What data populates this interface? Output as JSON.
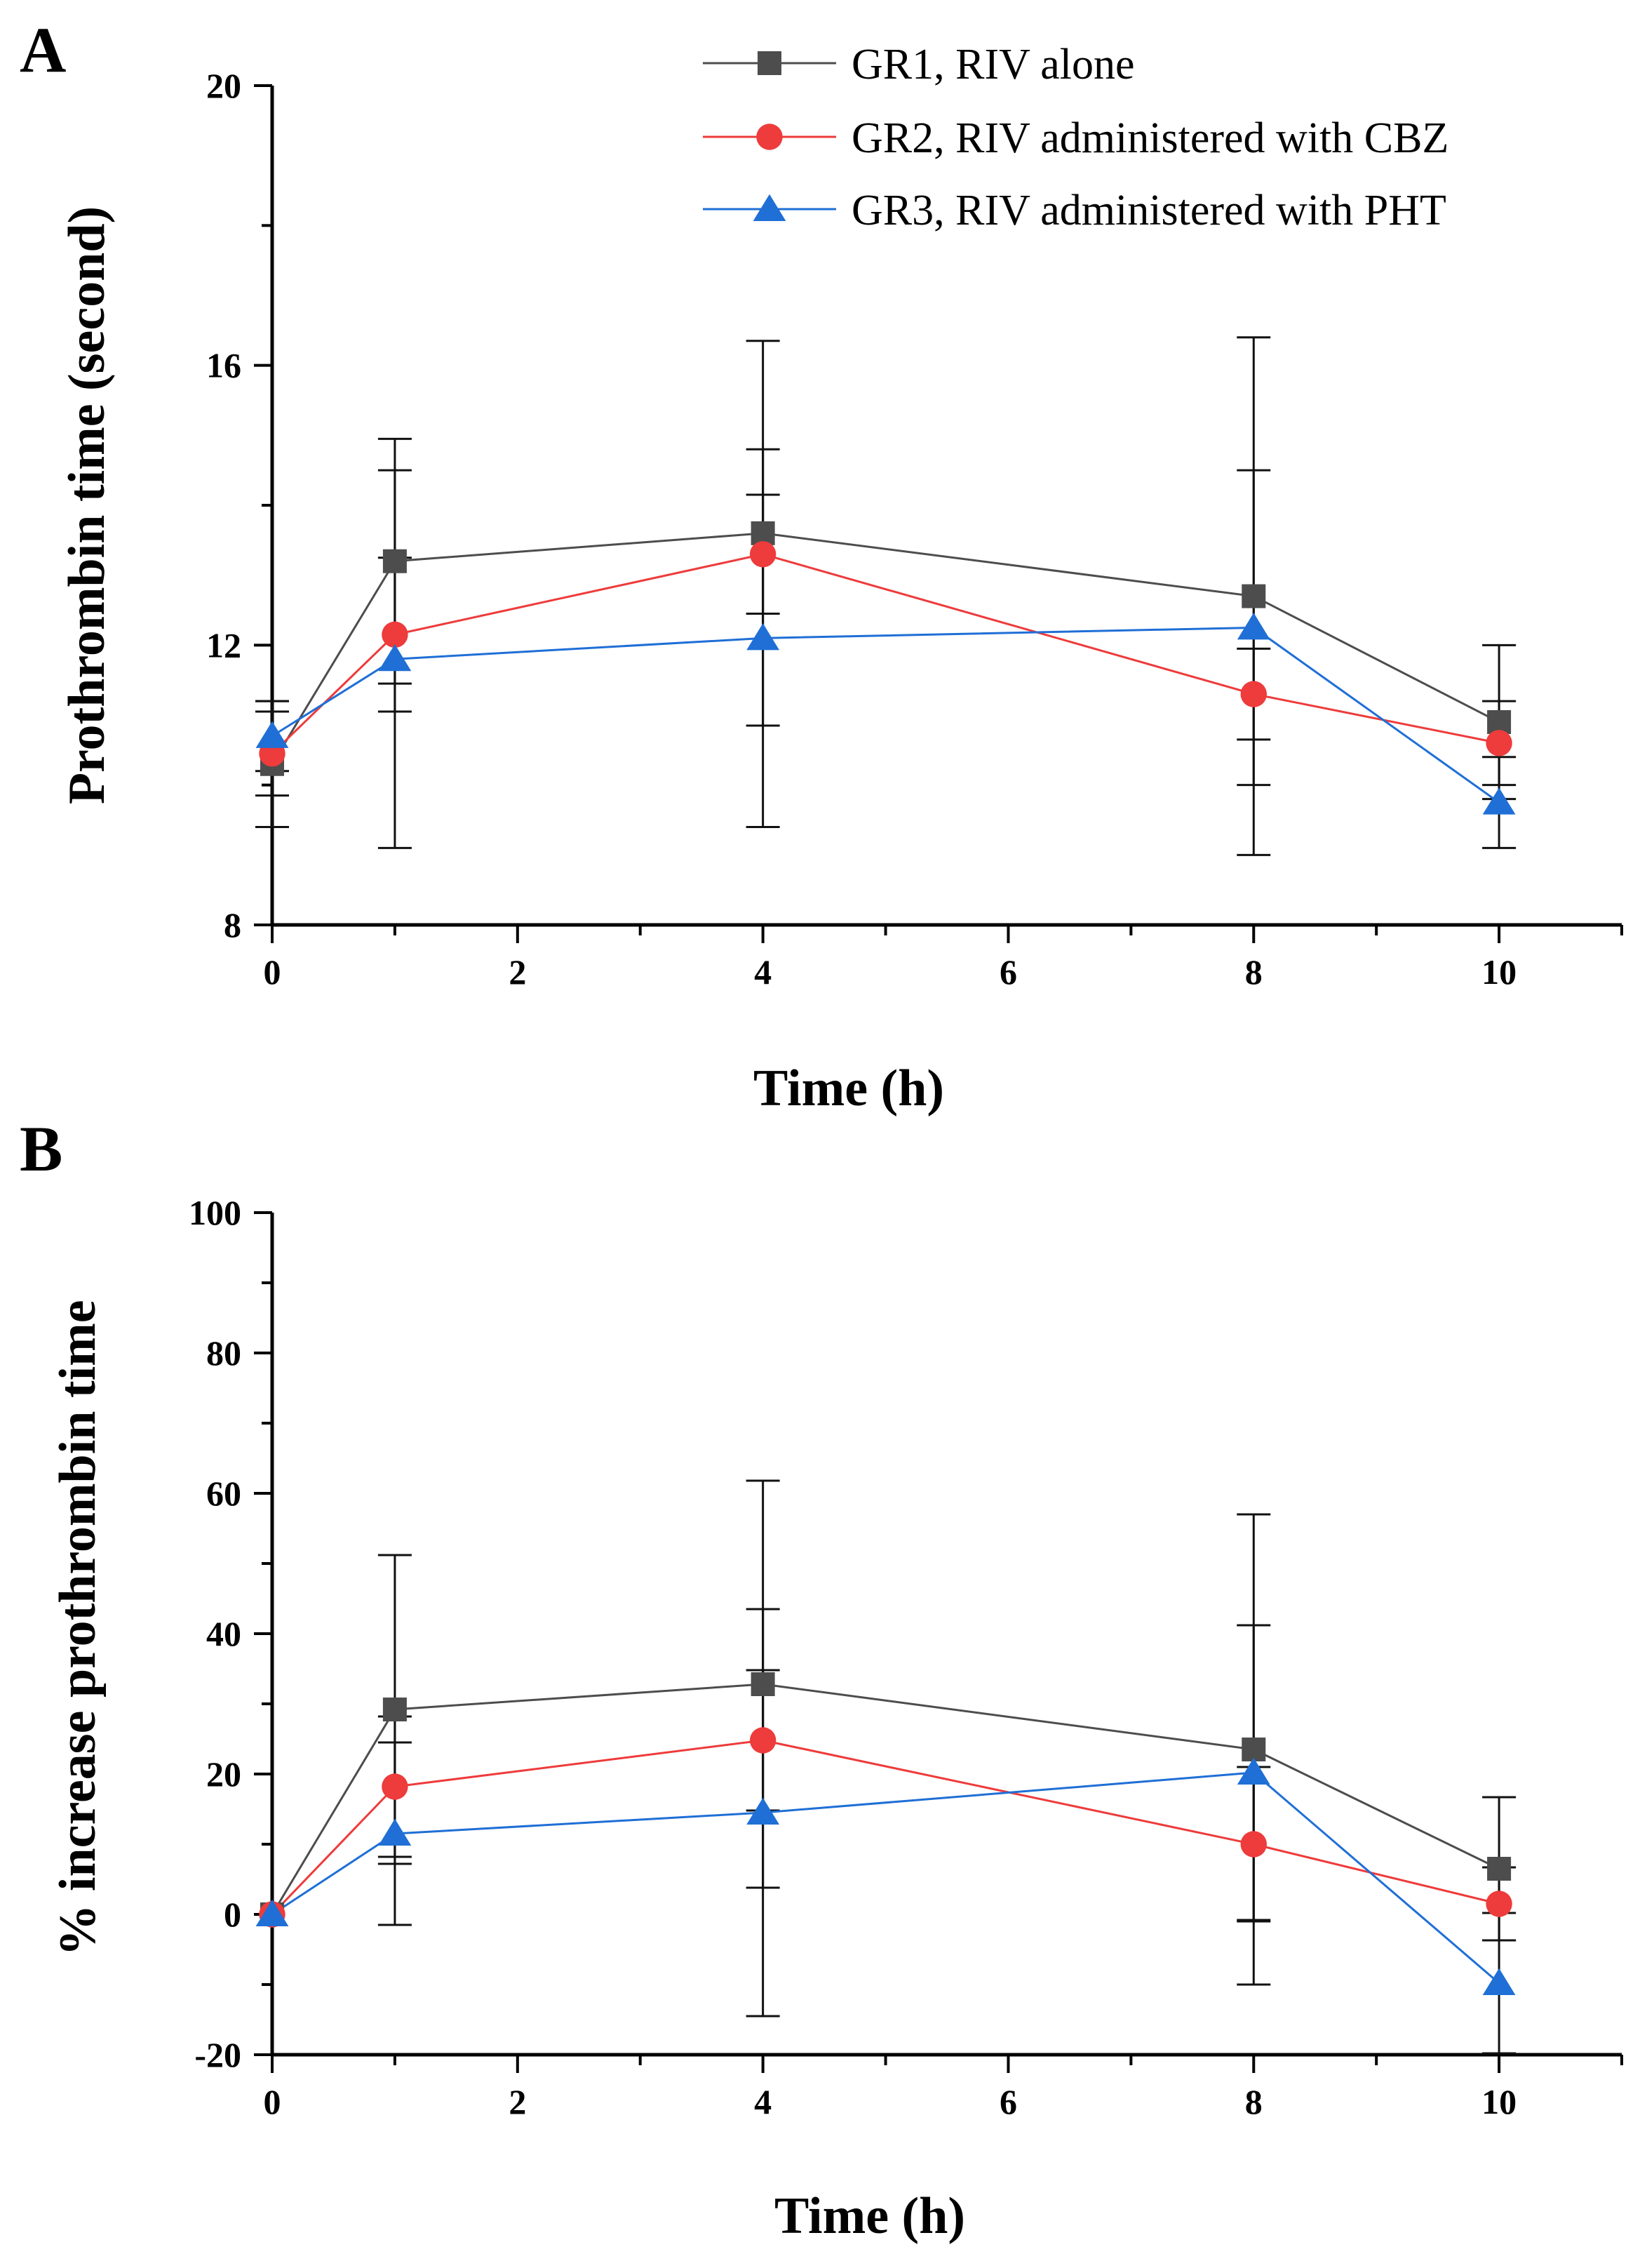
{
  "chart_data": [
    {
      "panel_label": "A",
      "type": "line",
      "xlabel": "Time (h)",
      "ylabel": "Prothrombin time (second)",
      "xlim": [
        0,
        11
      ],
      "ylim": [
        8,
        20
      ],
      "xticks": [
        0,
        2,
        4,
        6,
        8,
        10
      ],
      "yticks": [
        8,
        12,
        16,
        20
      ],
      "legend_position": "top-right",
      "series": [
        {
          "name": "GR1, RIV alone",
          "color": "#4d4d4d",
          "marker": "square",
          "x": [
            0,
            1,
            4,
            8,
            10
          ],
          "y": [
            10.3,
            13.2,
            13.6,
            12.7,
            10.9
          ],
          "error": [
            0.9,
            1.75,
            2.75,
            3.7,
            1.1
          ]
        },
        {
          "name": "GR2, RIV administered with CBZ",
          "color": "#ee3b3b",
          "marker": "circle",
          "x": [
            0,
            1,
            4,
            8,
            10
          ],
          "y": [
            10.45,
            12.15,
            13.3,
            11.3,
            10.6
          ],
          "error": [
            0.6,
            1.1,
            0.85,
            0.65,
            0.6
          ]
        },
        {
          "name": "GR3, RIV administered with PHT",
          "color": "#1f6fd6",
          "marker": "triangle",
          "x": [
            0,
            1,
            4,
            8,
            10
          ],
          "y": [
            10.7,
            11.8,
            12.1,
            12.25,
            9.75
          ],
          "error": [
            0.5,
            2.7,
            2.7,
            2.25,
            0.65
          ]
        }
      ]
    },
    {
      "panel_label": "B",
      "type": "line",
      "xlabel": "Time (h)",
      "ylabel": "% increase prothrombin time",
      "xlim": [
        0,
        11
      ],
      "ylim": [
        -20,
        100
      ],
      "xticks": [
        0,
        2,
        4,
        6,
        8,
        10
      ],
      "yticks": [
        -20,
        0,
        20,
        40,
        60,
        80,
        100
      ],
      "series": [
        {
          "name": "GR1, RIV alone",
          "color": "#4d4d4d",
          "marker": "square",
          "x": [
            0,
            1,
            4,
            8,
            10
          ],
          "y": [
            0,
            29.2,
            32.8,
            23.5,
            6.5
          ],
          "error": [
            0,
            22,
            29,
            33.5,
            10.2
          ]
        },
        {
          "name": "GR2, RIV administered with CBZ",
          "color": "#ee3b3b",
          "marker": "circle",
          "x": [
            0,
            1,
            4,
            8,
            10
          ],
          "y": [
            0,
            18.2,
            24.8,
            10,
            1.5
          ],
          "error": [
            0,
            10,
            10,
            11,
            5.2
          ]
        },
        {
          "name": "GR3, RIV administered with PHT",
          "color": "#1f6fd6",
          "marker": "triangle",
          "x": [
            0,
            1,
            4,
            8,
            10
          ],
          "y": [
            0,
            11.5,
            14.5,
            20.2,
            -9.8
          ],
          "error": [
            0,
            13,
            29,
            21,
            10
          ]
        }
      ]
    }
  ]
}
